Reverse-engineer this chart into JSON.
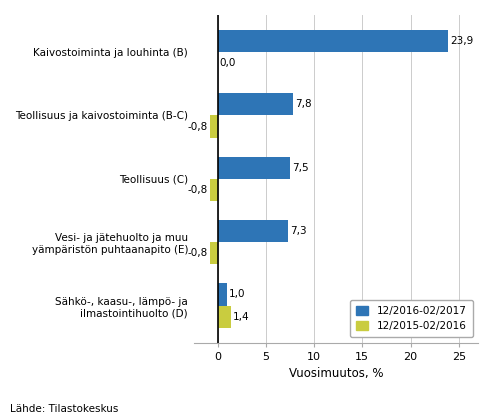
{
  "categories": [
    "Kaivostoiminta ja louhinta (B)",
    "Teollisuus ja kaivostoiminta (B-C)",
    "Teollisuus (C)",
    "Vesi- ja jätehuolto ja muu\nyämpäristön puhtaanapito (E)",
    "Sähkö-, kaasu-, lämpö- ja\nilmastointihuolto (D)"
  ],
  "values_2017": [
    23.9,
    7.8,
    7.5,
    7.3,
    1.0
  ],
  "values_2016": [
    0.0,
    -0.8,
    -0.8,
    -0.8,
    1.4
  ],
  "labels_2017": [
    "23,9",
    "7,8",
    "7,5",
    "7,3",
    "1,0"
  ],
  "labels_2016": [
    "0,0",
    "-0,8",
    "-0,8",
    "-0,8",
    "1,4"
  ],
  "color_2017": "#2E75B6",
  "color_2016": "#C9CC3F",
  "xlabel": "Vuosimuutos, %",
  "legend_2017": "12/2016-02/2017",
  "legend_2016": "12/2015-02/2016",
  "source": "Lähde: Tilastokeskus",
  "xlim": [
    -2.5,
    27
  ],
  "xticks": [
    0,
    5,
    10,
    15,
    20,
    25
  ],
  "xtick_labels": [
    "0",
    "5",
    "10",
    "15",
    "20",
    "25"
  ],
  "bar_height": 0.35,
  "background_color": "#ffffff",
  "grid_color": "#cccccc"
}
